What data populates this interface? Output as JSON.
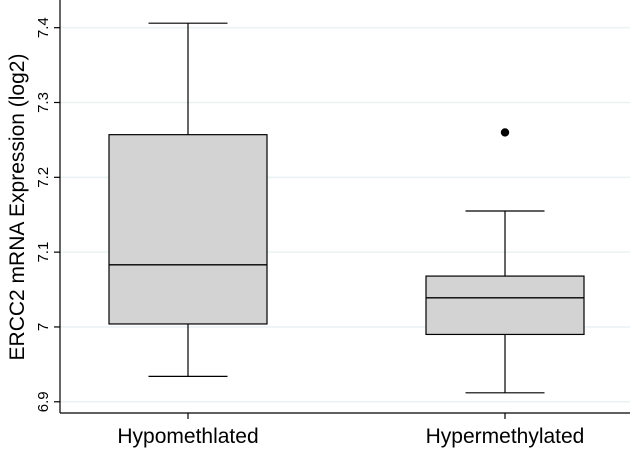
{
  "chart_data": {
    "type": "box",
    "title": "",
    "xlabel": "",
    "ylabel": "ERCC2 mRNA Expression (log2)",
    "ylim": [
      6.885,
      7.437
    ],
    "yticks": [
      6.9,
      7,
      7.1,
      7.2,
      7.3,
      7.4
    ],
    "ytick_labels": [
      "6.9",
      "7",
      "7.1",
      "7.2",
      "7.3",
      "7.4"
    ],
    "grid": true,
    "categories": [
      "Hypomethlated",
      "Hypermethylated"
    ],
    "boxes": [
      {
        "name": "Hypomethlated",
        "whisker_low": 6.934,
        "q1": 7.004,
        "median": 7.083,
        "q3": 7.257,
        "whisker_high": 7.406,
        "outliers": []
      },
      {
        "name": "Hypermethylated",
        "whisker_low": 6.912,
        "q1": 6.99,
        "median": 7.039,
        "q3": 7.068,
        "whisker_high": 7.155,
        "outliers": [
          7.26
        ]
      }
    ],
    "colors": {
      "box_fill": "#d3d3d3",
      "stroke": "#000000",
      "grid": "#eaf2f3",
      "background": "#ffffff"
    }
  }
}
